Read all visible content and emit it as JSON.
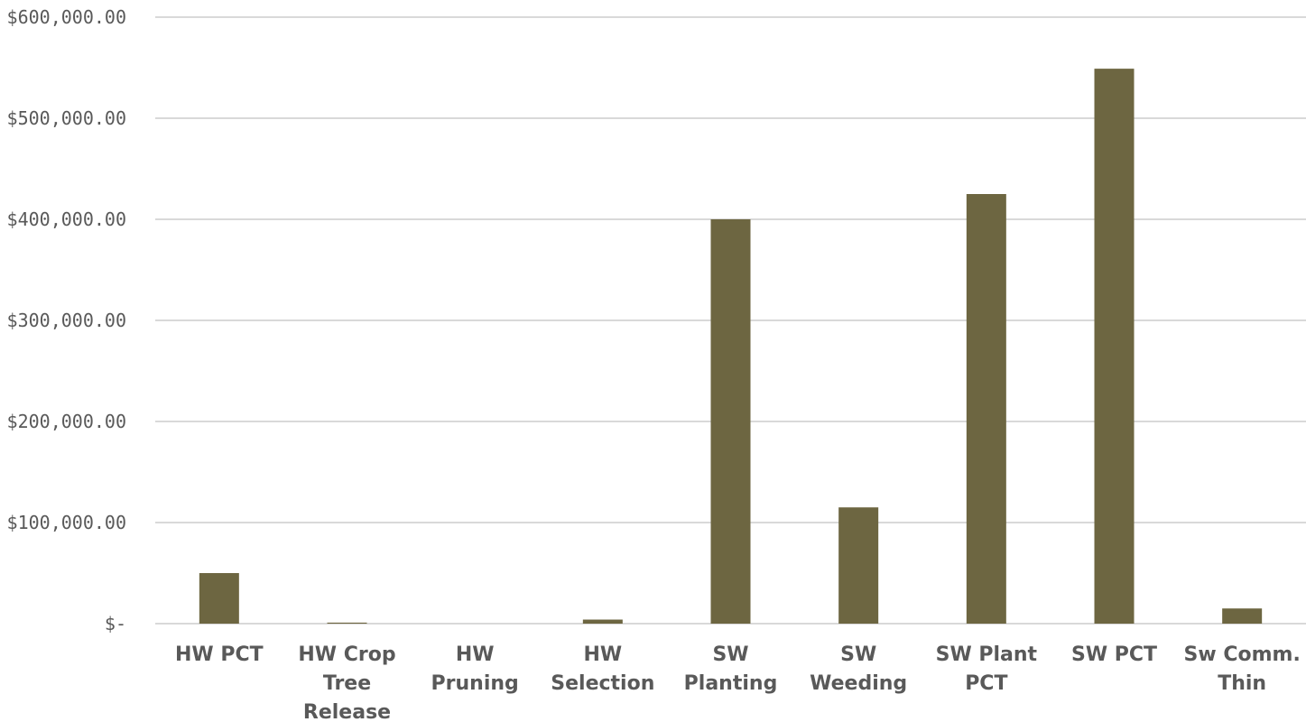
{
  "chart_data": {
    "type": "bar",
    "title": "",
    "xlabel": "",
    "ylabel": "",
    "categories": [
      [
        "HW PCT"
      ],
      [
        "HW Crop",
        "Tree",
        "Release"
      ],
      [
        "HW",
        "Pruning"
      ],
      [
        "HW",
        "Selection"
      ],
      [
        "SW",
        "Planting"
      ],
      [
        "SW",
        "Weeding"
      ],
      [
        "SW Plant",
        "PCT"
      ],
      [
        "SW PCT"
      ],
      [
        "Sw Comm.",
        "Thin"
      ]
    ],
    "values": [
      50000,
      1000,
      0,
      4000,
      400000,
      115000,
      425000,
      549000,
      15000
    ],
    "ylim": [
      0,
      600000
    ],
    "yticks": [
      0,
      100000,
      200000,
      300000,
      400000,
      500000,
      600000
    ],
    "ytick_labels": [
      "$-",
      "$100,000.00",
      "$200,000.00",
      "$300,000.00",
      "$400,000.00",
      "$500,000.00",
      "$600,000.00"
    ],
    "grid": true,
    "legend": "none",
    "colors": {
      "bar": "#6d6641",
      "grid": "#d9d9d9",
      "text": "#595959"
    }
  }
}
